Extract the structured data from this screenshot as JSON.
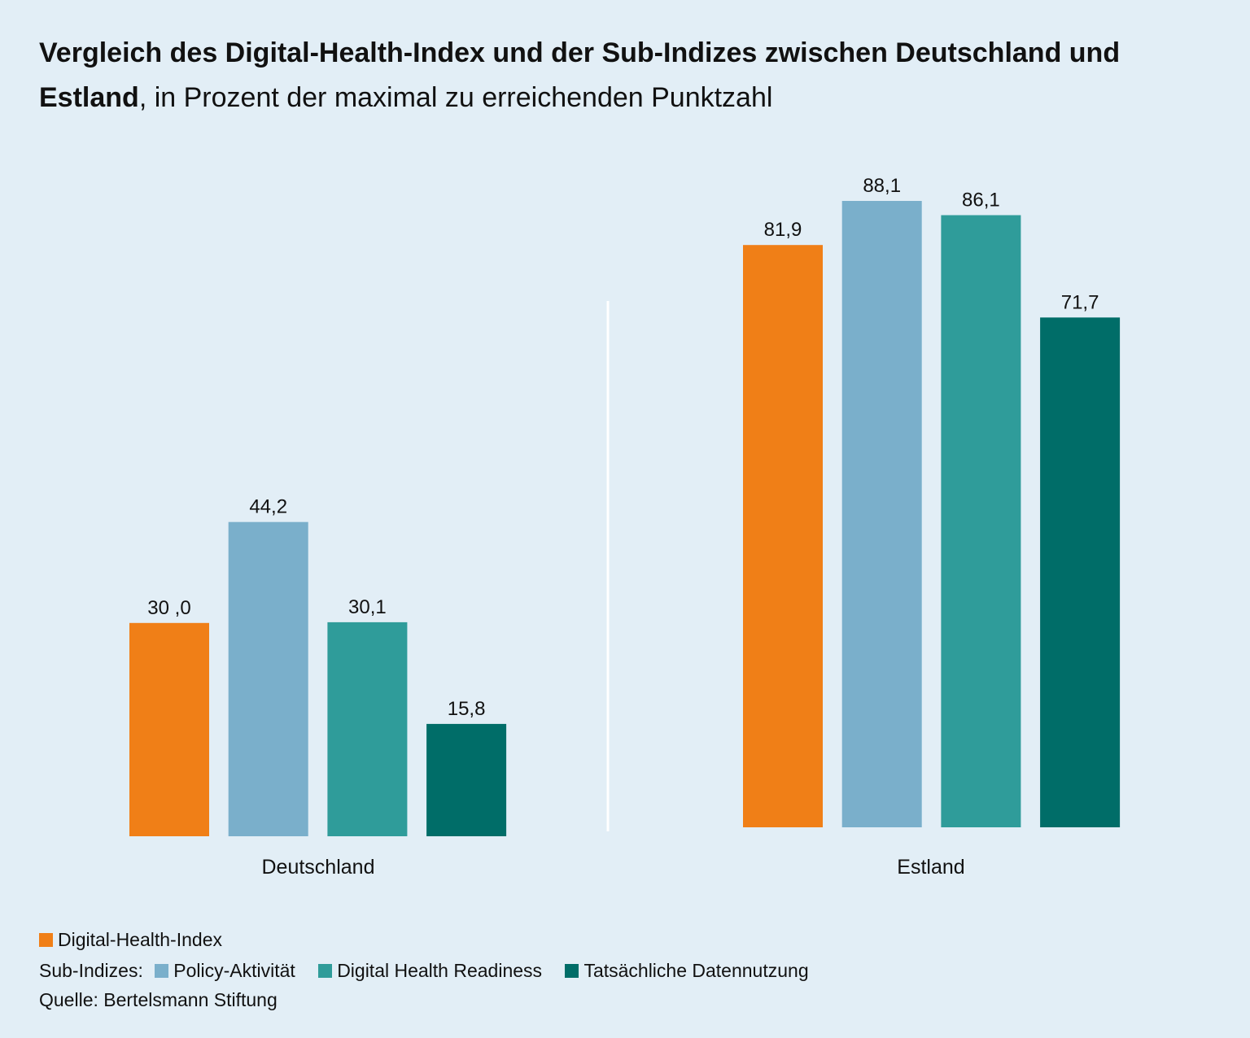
{
  "title": {
    "bold": "Vergleich des Digital-Health-Index und der Sub-Indizes zwischen Deutschland und Estland",
    "comma": ",",
    "rest": " in Prozent der maximal zu erreichenden Punktzahl"
  },
  "legend": {
    "index_label": "Digital-Health-Index",
    "sub_prefix": "Sub-Indizes:",
    "sub_items": [
      "Policy-Aktivität",
      "Digital Health Readiness",
      "Tatsächliche Datennutzung"
    ]
  },
  "source": "Quelle: Bertelsmann Stiftung",
  "colors": {
    "background": "#e2eef6",
    "digital_health_index": "#f07f17",
    "policy_aktivitaet": "#7aafcb",
    "digital_health_readiness": "#2f9c9a",
    "tatsaechliche_datennutzung": "#006d68",
    "divider": "#ffffff"
  },
  "chart_data": {
    "type": "bar",
    "categories": [
      "Deutschland",
      "Estland"
    ],
    "series": [
      {
        "name": "Digital-Health-Index",
        "values": [
          30.0,
          81.9
        ],
        "labels": [
          "30 ,0",
          "81,9"
        ]
      },
      {
        "name": "Policy-Aktivität",
        "values": [
          44.2,
          88.1
        ],
        "labels": [
          "44,2",
          "88,1"
        ]
      },
      {
        "name": "Digital Health Readiness",
        "values": [
          30.1,
          86.1
        ],
        "labels": [
          "30,1",
          "86,1"
        ]
      },
      {
        "name": "Tatsächliche Datennutzung",
        "values": [
          15.8,
          71.7
        ],
        "labels": [
          "15,8",
          "71,7"
        ]
      }
    ],
    "ylim": [
      0,
      100
    ],
    "grid": false,
    "legend_position": "bottom-left"
  }
}
